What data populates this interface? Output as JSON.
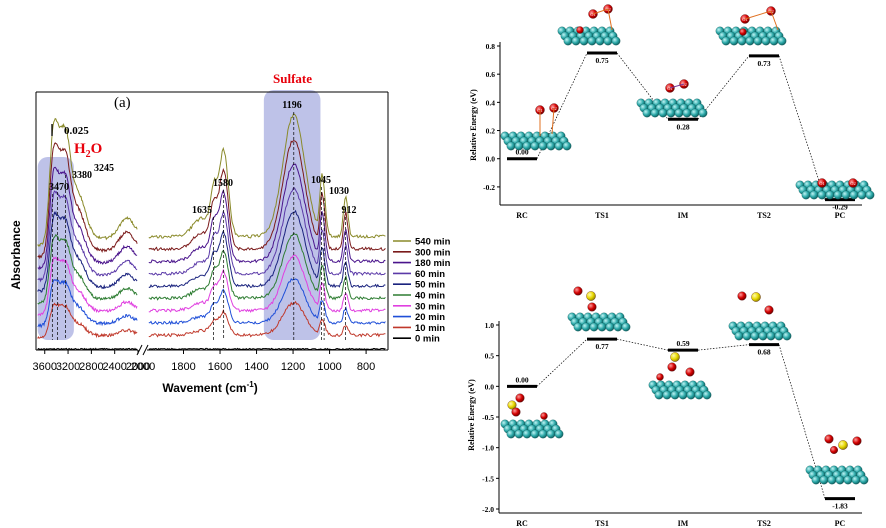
{
  "chart_data": [
    {
      "type": "line",
      "panel_label": "(a)",
      "ylabel": "Absorbance",
      "xlabel": "Wavement (cm",
      "xlabel_sup": "-1",
      "xlabel_end": ")",
      "scale_bar_label": "0.025",
      "x_break": [
        2000,
        1800
      ],
      "left_segment": {
        "xlim": [
          3750,
          2000
        ],
        "ticks": [
          3600,
          3200,
          2800,
          2400,
          2000
        ]
      },
      "right_segment": {
        "xlim": [
          2000,
          680
        ],
        "ticks": [
          1800,
          1600,
          1400,
          1200,
          1000,
          800
        ]
      },
      "regions": [
        {
          "label": "H",
          "label_sub": "2",
          "label_end": "O",
          "label_color": "#e8000b",
          "x_range": [
            3720,
            3100
          ],
          "color": "#a8aee0"
        },
        {
          "label": "Sulfate",
          "label_color": "#e8000b",
          "x_range": [
            1360,
            1050
          ],
          "color": "#a8aee0"
        }
      ],
      "peak_labels": [
        {
          "text": "3470",
          "x": 3470
        },
        {
          "text": "3380",
          "x": 3380
        },
        {
          "text": "3245",
          "x": 3245
        },
        {
          "text": "1635",
          "x": 1635
        },
        {
          "text": "1580",
          "x": 1580
        },
        {
          "text": "1196",
          "x": 1196
        },
        {
          "text": "1045",
          "x": 1045
        },
        {
          "text": "1030",
          "x": 1030
        },
        {
          "text": "912",
          "x": 912
        }
      ],
      "series": [
        {
          "name": "0 min",
          "color": "#000000",
          "scale": 0.0
        },
        {
          "name": "10 min",
          "color": "#c0392b",
          "scale": 0.12
        },
        {
          "name": "20 min",
          "color": "#1f4fd8",
          "scale": 0.24
        },
        {
          "name": "30 min",
          "color": "#e040e0",
          "scale": 0.34
        },
        {
          "name": "40 min",
          "color": "#2e7d32",
          "scale": 0.44
        },
        {
          "name": "50 min",
          "color": "#1a237e",
          "scale": 0.54
        },
        {
          "name": "60 min",
          "color": "#5b3aa8",
          "scale": 0.64
        },
        {
          "name": "180 min",
          "color": "#4a148c",
          "scale": 0.76
        },
        {
          "name": "300 min",
          "color": "#7b1b1b",
          "scale": 0.88
        },
        {
          "name": "540 min",
          "color": "#8a8a2a",
          "scale": 1.0
        }
      ]
    },
    {
      "type": "line",
      "ylabel": "Relative Energy (eV)",
      "ylim": [
        -0.3,
        0.8
      ],
      "yticks": [
        "0.8",
        "0.6",
        "0.4",
        "0.2",
        "0.0",
        "-0.2"
      ],
      "categories": [
        "RC",
        "TS1",
        "IM",
        "TS2",
        "PC"
      ],
      "values": [
        0.0,
        0.75,
        0.28,
        0.73,
        -0.29
      ],
      "value_labels": [
        "0.00",
        "0.75",
        "0.28",
        "0.73",
        "-0.29"
      ]
    },
    {
      "type": "line",
      "ylabel": "Relative Energy (eV)",
      "ylim": [
        -2.0,
        1.0
      ],
      "yticks": [
        "1.0",
        "0.5",
        "0.0",
        "-0.5",
        "-1.0",
        "-1.5",
        "-2.0"
      ],
      "categories": [
        "RC",
        "TS1",
        "IM",
        "TS2",
        "PC"
      ],
      "values": [
        0.0,
        0.77,
        0.59,
        0.68,
        -1.83
      ],
      "value_labels": [
        "0.00",
        "0.77",
        "0.59",
        "0.68",
        "-1.83"
      ]
    }
  ],
  "colors": {
    "surface_atom": "#2aa8a8",
    "oxygen_atom": "#d40000",
    "sulfur_atom": "#e8d800",
    "bond_line": "#e07020"
  },
  "icons": {
    "cluster": "adsorbate-on-surface-cluster-icon"
  }
}
